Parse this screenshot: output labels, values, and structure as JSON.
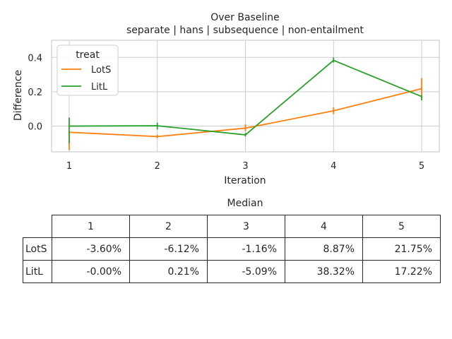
{
  "chart_data": {
    "type": "line",
    "title": "Over Baseline",
    "subtitle": "separate | hans | subsequence | non-entailment",
    "xlabel": "Iteration",
    "ylabel": "Difference",
    "x": [
      1,
      2,
      3,
      4,
      5
    ],
    "xlim": [
      0.8,
      5.2
    ],
    "ylim": [
      -0.15,
      0.5
    ],
    "yticks": [
      0.0,
      0.2,
      0.4
    ],
    "yticklabels": [
      "0.0",
      "0.2",
      "0.4"
    ],
    "grid": true,
    "legend": {
      "title": "treat",
      "placement": "top-left"
    },
    "series": [
      {
        "name": "LotS",
        "color": "#ff7f0e",
        "values": [
          -0.036,
          -0.061,
          -0.012,
          0.089,
          0.218
        ],
        "err_low": [
          -0.14,
          -0.07,
          -0.03,
          0.07,
          0.16
        ],
        "err_high": [
          -0.03,
          -0.05,
          0.01,
          0.11,
          0.28
        ]
      },
      {
        "name": "LitL",
        "color": "#2ca02c",
        "values": [
          0.0,
          0.002,
          -0.051,
          0.383,
          0.172
        ],
        "err_low": [
          -0.1,
          -0.02,
          -0.06,
          0.37,
          0.15
        ],
        "err_high": [
          0.05,
          0.02,
          -0.04,
          0.4,
          0.18
        ]
      }
    ]
  },
  "table": {
    "title": "Median",
    "columns": [
      "1",
      "2",
      "3",
      "4",
      "5"
    ],
    "rows": [
      {
        "label": "LotS",
        "values": [
          "-3.60%",
          "-6.12%",
          "-1.16%",
          "8.87%",
          "21.75%"
        ]
      },
      {
        "label": "LitL",
        "values": [
          "-0.00%",
          "0.21%",
          "-5.09%",
          "38.32%",
          "17.22%"
        ]
      }
    ]
  }
}
